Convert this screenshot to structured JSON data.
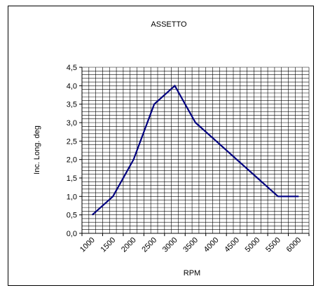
{
  "chart_data": {
    "type": "line",
    "title": "ASSETTO",
    "xlabel": "RPM",
    "ylabel": "Inc. Long. deg",
    "categories": [
      "1000",
      "1500",
      "2000",
      "2500",
      "3000",
      "3500",
      "4000",
      "4500",
      "5000",
      "5500",
      "6000"
    ],
    "series": [
      {
        "values": [
          0.5,
          1.0,
          2.0,
          3.5,
          4.0,
          3.0,
          2.5,
          2.0,
          1.5,
          1.0,
          1.0
        ]
      }
    ],
    "y_ticks": [
      "0,0",
      "0,5",
      "1,0",
      "1,5",
      "2,0",
      "2,5",
      "3,0",
      "3,5",
      "4,0",
      "4,5"
    ],
    "ylim": [
      0,
      4.5
    ],
    "grid": true,
    "line_color": "#000080",
    "grid_color": "#000000"
  }
}
